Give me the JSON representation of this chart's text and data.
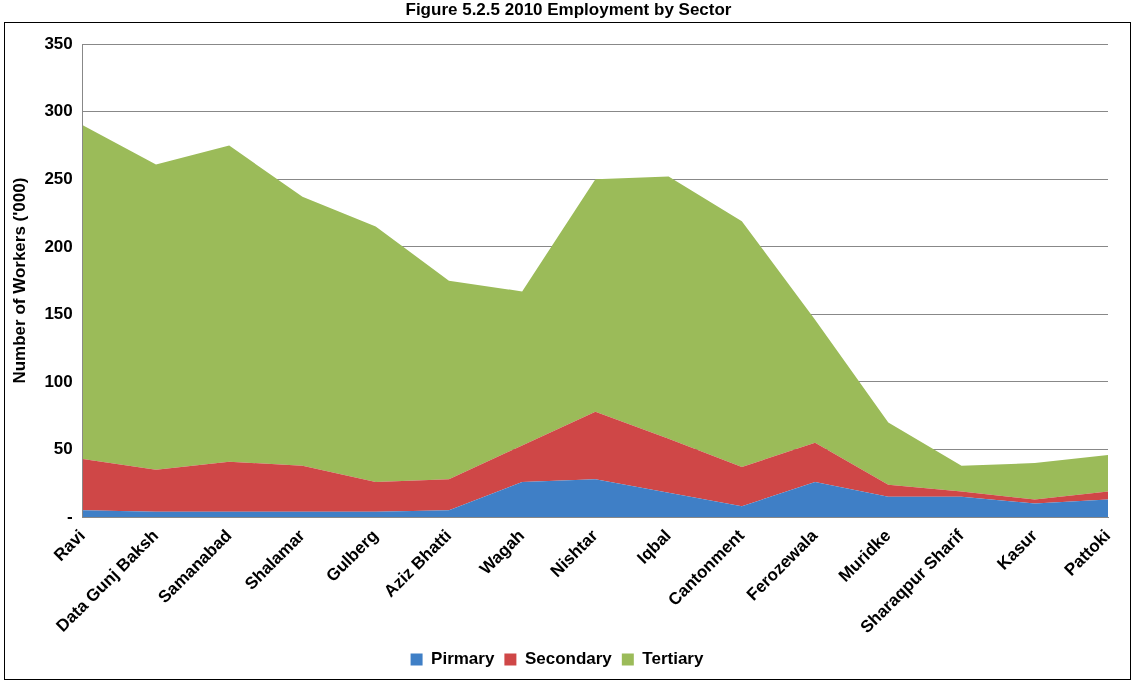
{
  "chart_data": {
    "type": "area",
    "title": "Figure 5.2.5 2010 Employment by Sector",
    "ylabel": "Number of Workers ('000)",
    "categories": [
      "Ravi",
      "Data Gunj Baksh",
      "Samanabad",
      "Shalamar",
      "Gulberg",
      "Aziz Bhatti",
      "Wagah",
      "Nishtar",
      "Iqbal",
      "Cantonment",
      "Ferozewala",
      "Muridke",
      "Sharaqpur Sharif",
      "Kasur",
      "Pattoki"
    ],
    "stacked": true,
    "series": [
      {
        "name": "Pirmary",
        "color": "#3f7fc6",
        "values": [
          5,
          4,
          4,
          4,
          4,
          5,
          26,
          28,
          18,
          8,
          26,
          15,
          15,
          10,
          13
        ]
      },
      {
        "name": "Secondary",
        "color": "#cf4747",
        "values": [
          38,
          31,
          37,
          34,
          22,
          23,
          27,
          50,
          40,
          29,
          29,
          9,
          4,
          3,
          6
        ]
      },
      {
        "name": "Tertiary",
        "color": "#9bbb59",
        "values": [
          247,
          226,
          234,
          199,
          189,
          147,
          114,
          172,
          194,
          182,
          91,
          46,
          19,
          27,
          27
        ]
      }
    ],
    "ylim": [
      0,
      350
    ],
    "yticks": [
      {
        "value": 0,
        "label": "-"
      },
      50,
      100,
      150,
      200,
      250,
      300,
      350
    ],
    "grid": "y",
    "legend": "bottom"
  }
}
